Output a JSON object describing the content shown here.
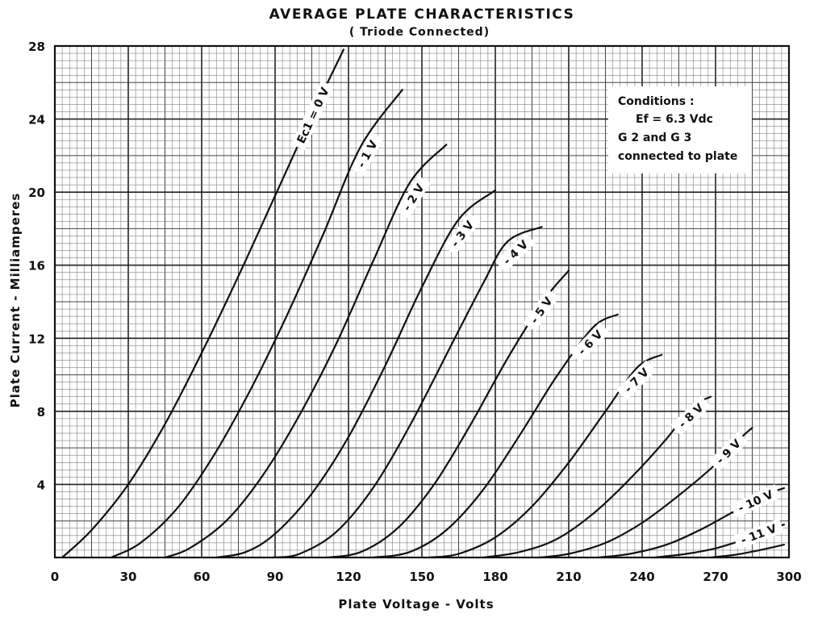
{
  "chart_data": {
    "type": "line",
    "title": "AVERAGE PLATE CHARACTERISTICS",
    "subtitle": "( Triode Connected)",
    "xlabel": "Plate Voltage - Volts",
    "ylabel": "Plate Current - Milliamperes",
    "xlim": [
      0,
      300
    ],
    "ylim": [
      0,
      28
    ],
    "x_ticks": [
      0,
      30,
      60,
      90,
      120,
      150,
      180,
      210,
      240,
      270,
      300
    ],
    "y_ticks": [
      4,
      8,
      12,
      16,
      20,
      24,
      28
    ],
    "grid": true,
    "conditions": {
      "heading": "Conditions :",
      "lines": [
        "Ef = 6.3 Vdc",
        "G 2 and G 3",
        "connected to plate"
      ]
    },
    "series": [
      {
        "name": "Ec1 = 0 V",
        "points": [
          [
            3,
            0
          ],
          [
            15,
            1.5
          ],
          [
            30,
            4
          ],
          [
            45,
            7.3
          ],
          [
            60,
            11.2
          ],
          [
            75,
            15.4
          ],
          [
            90,
            19.8
          ],
          [
            105,
            24.2
          ],
          [
            118,
            27.8
          ]
        ]
      },
      {
        "name": "- 1 V",
        "points": [
          [
            23,
            0
          ],
          [
            35,
            0.8
          ],
          [
            50,
            2.7
          ],
          [
            65,
            5.6
          ],
          [
            80,
            9.2
          ],
          [
            95,
            13.3
          ],
          [
            110,
            17.8
          ],
          [
            125,
            22.5
          ],
          [
            142,
            25.6
          ]
        ]
      },
      {
        "name": "- 2 V",
        "points": [
          [
            45,
            0
          ],
          [
            55,
            0.5
          ],
          [
            70,
            2
          ],
          [
            85,
            4.5
          ],
          [
            100,
            7.8
          ],
          [
            115,
            11.7
          ],
          [
            130,
            16.2
          ],
          [
            145,
            20.5
          ],
          [
            160,
            22.6
          ]
        ]
      },
      {
        "name": "- 3 V",
        "points": [
          [
            66,
            0
          ],
          [
            78,
            0.3
          ],
          [
            90,
            1.3
          ],
          [
            105,
            3.5
          ],
          [
            120,
            6.6
          ],
          [
            135,
            10.5
          ],
          [
            150,
            14.8
          ],
          [
            165,
            18.5
          ],
          [
            180,
            20.1
          ]
        ]
      },
      {
        "name": "- 4 V",
        "points": [
          [
            89,
            0
          ],
          [
            100,
            0.2
          ],
          [
            115,
            1.4
          ],
          [
            130,
            3.8
          ],
          [
            145,
            7.2
          ],
          [
            160,
            11.1
          ],
          [
            175,
            15
          ],
          [
            185,
            17.3
          ],
          [
            199,
            18.1
          ]
        ]
      },
      {
        "name": "- 5 V",
        "points": [
          [
            111,
            0
          ],
          [
            125,
            0.3
          ],
          [
            140,
            1.6
          ],
          [
            155,
            4
          ],
          [
            170,
            7.3
          ],
          [
            185,
            10.9
          ],
          [
            200,
            14.1
          ],
          [
            210,
            15.7
          ]
        ]
      },
      {
        "name": "- 6 V",
        "points": [
          [
            130,
            0
          ],
          [
            145,
            0.3
          ],
          [
            160,
            1.5
          ],
          [
            175,
            3.7
          ],
          [
            190,
            6.7
          ],
          [
            205,
            9.9
          ],
          [
            220,
            12.6
          ],
          [
            230,
            13.3
          ]
        ]
      },
      {
        "name": "- 7 V",
        "points": [
          [
            153,
            0
          ],
          [
            165,
            0.2
          ],
          [
            180,
            1.1
          ],
          [
            195,
            2.8
          ],
          [
            210,
            5.2
          ],
          [
            225,
            8
          ],
          [
            238,
            10.4
          ],
          [
            248,
            11.1
          ]
        ]
      },
      {
        "name": "- 8 V",
        "points": [
          [
            175,
            0
          ],
          [
            190,
            0.3
          ],
          [
            205,
            1
          ],
          [
            220,
            2.4
          ],
          [
            235,
            4.3
          ],
          [
            250,
            6.5
          ],
          [
            260,
            8.2
          ],
          [
            268,
            8.8
          ]
        ]
      },
      {
        "name": "- 9 V",
        "points": [
          [
            198,
            0
          ],
          [
            210,
            0.2
          ],
          [
            225,
            0.8
          ],
          [
            240,
            1.9
          ],
          [
            255,
            3.4
          ],
          [
            270,
            5.1
          ],
          [
            280,
            6.5
          ],
          [
            285,
            7.1
          ]
        ]
      },
      {
        "name": "- 10 V",
        "points": [
          [
            222,
            0
          ],
          [
            235,
            0.2
          ],
          [
            250,
            0.7
          ],
          [
            265,
            1.6
          ],
          [
            280,
            2.7
          ],
          [
            292,
            3.5
          ],
          [
            298,
            3.8
          ]
        ]
      },
      {
        "name": "- 11 V",
        "points": [
          [
            245,
            0
          ],
          [
            258,
            0.2
          ],
          [
            270,
            0.5
          ],
          [
            282,
            1
          ],
          [
            292,
            1.5
          ],
          [
            298,
            1.8
          ]
        ]
      },
      {
        "name": "",
        "points": [
          [
            268,
            0
          ],
          [
            278,
            0.15
          ],
          [
            288,
            0.4
          ],
          [
            298,
            0.7
          ]
        ]
      }
    ]
  }
}
